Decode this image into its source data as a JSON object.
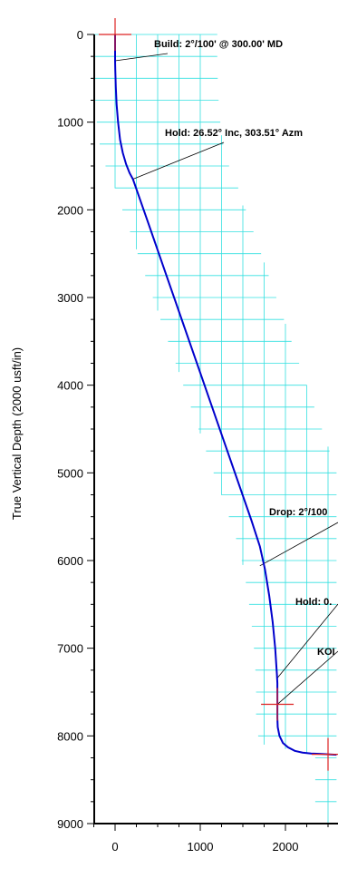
{
  "chart_data": {
    "type": "line",
    "title": "",
    "ylabel": "True Vertical Depth (2000 usft/in)",
    "xlabel": "",
    "xlim": [
      -250,
      2600
    ],
    "ylim": [
      0,
      9000
    ],
    "y_inverted": true,
    "x_ticks": [
      0,
      1000,
      2000
    ],
    "y_ticks": [
      0,
      1000,
      2000,
      3000,
      4000,
      5000,
      6000,
      7000,
      8000,
      9000
    ],
    "grid": true,
    "colors": {
      "line": "#0000cc",
      "grid": "#33e0e0",
      "marker": "#dd2222",
      "axis": "#000000"
    },
    "series": [
      {
        "x": [
          0,
          0,
          2,
          8,
          18,
          35,
          58,
          90,
          130,
          170,
          210,
          400,
          600,
          800,
          1000,
          1200,
          1400,
          1600,
          1700,
          1760,
          1810,
          1850,
          1880,
          1900,
          1905,
          1905,
          1905,
          1910,
          1930,
          1970,
          2030,
          2110,
          2200,
          2300,
          2400,
          2500,
          2600
        ],
        "y": [
          0,
          300,
          400,
          600,
          800,
          1000,
          1200,
          1350,
          1480,
          1580,
          1650,
          2180,
          2740,
          3300,
          3860,
          4420,
          4980,
          5540,
          5840,
          6100,
          6400,
          6700,
          7000,
          7300,
          7400,
          7640,
          7800,
          7900,
          8000,
          8080,
          8130,
          8170,
          8190,
          8200,
          8205,
          8210,
          8215
        ]
      }
    ],
    "markers": [
      {
        "x": 0,
        "y": 0
      },
      {
        "x": 1905,
        "y": 7640
      },
      {
        "x": 2500,
        "y": 8210
      }
    ],
    "annotations": [
      {
        "text": "Build: 2°/100' @ 300.00' MD",
        "x": 0,
        "y": 300
      },
      {
        "text": "Hold: 26.52° Inc, 303.51° Azm",
        "x": 210,
        "y": 1650
      },
      {
        "text": "Drop: 2°/100",
        "x": 1700,
        "y": 6060
      },
      {
        "text": "Hold: 0.",
        "x": 1905,
        "y": 7340
      },
      {
        "text": "KOI",
        "x": 1905,
        "y": 7640
      }
    ]
  }
}
